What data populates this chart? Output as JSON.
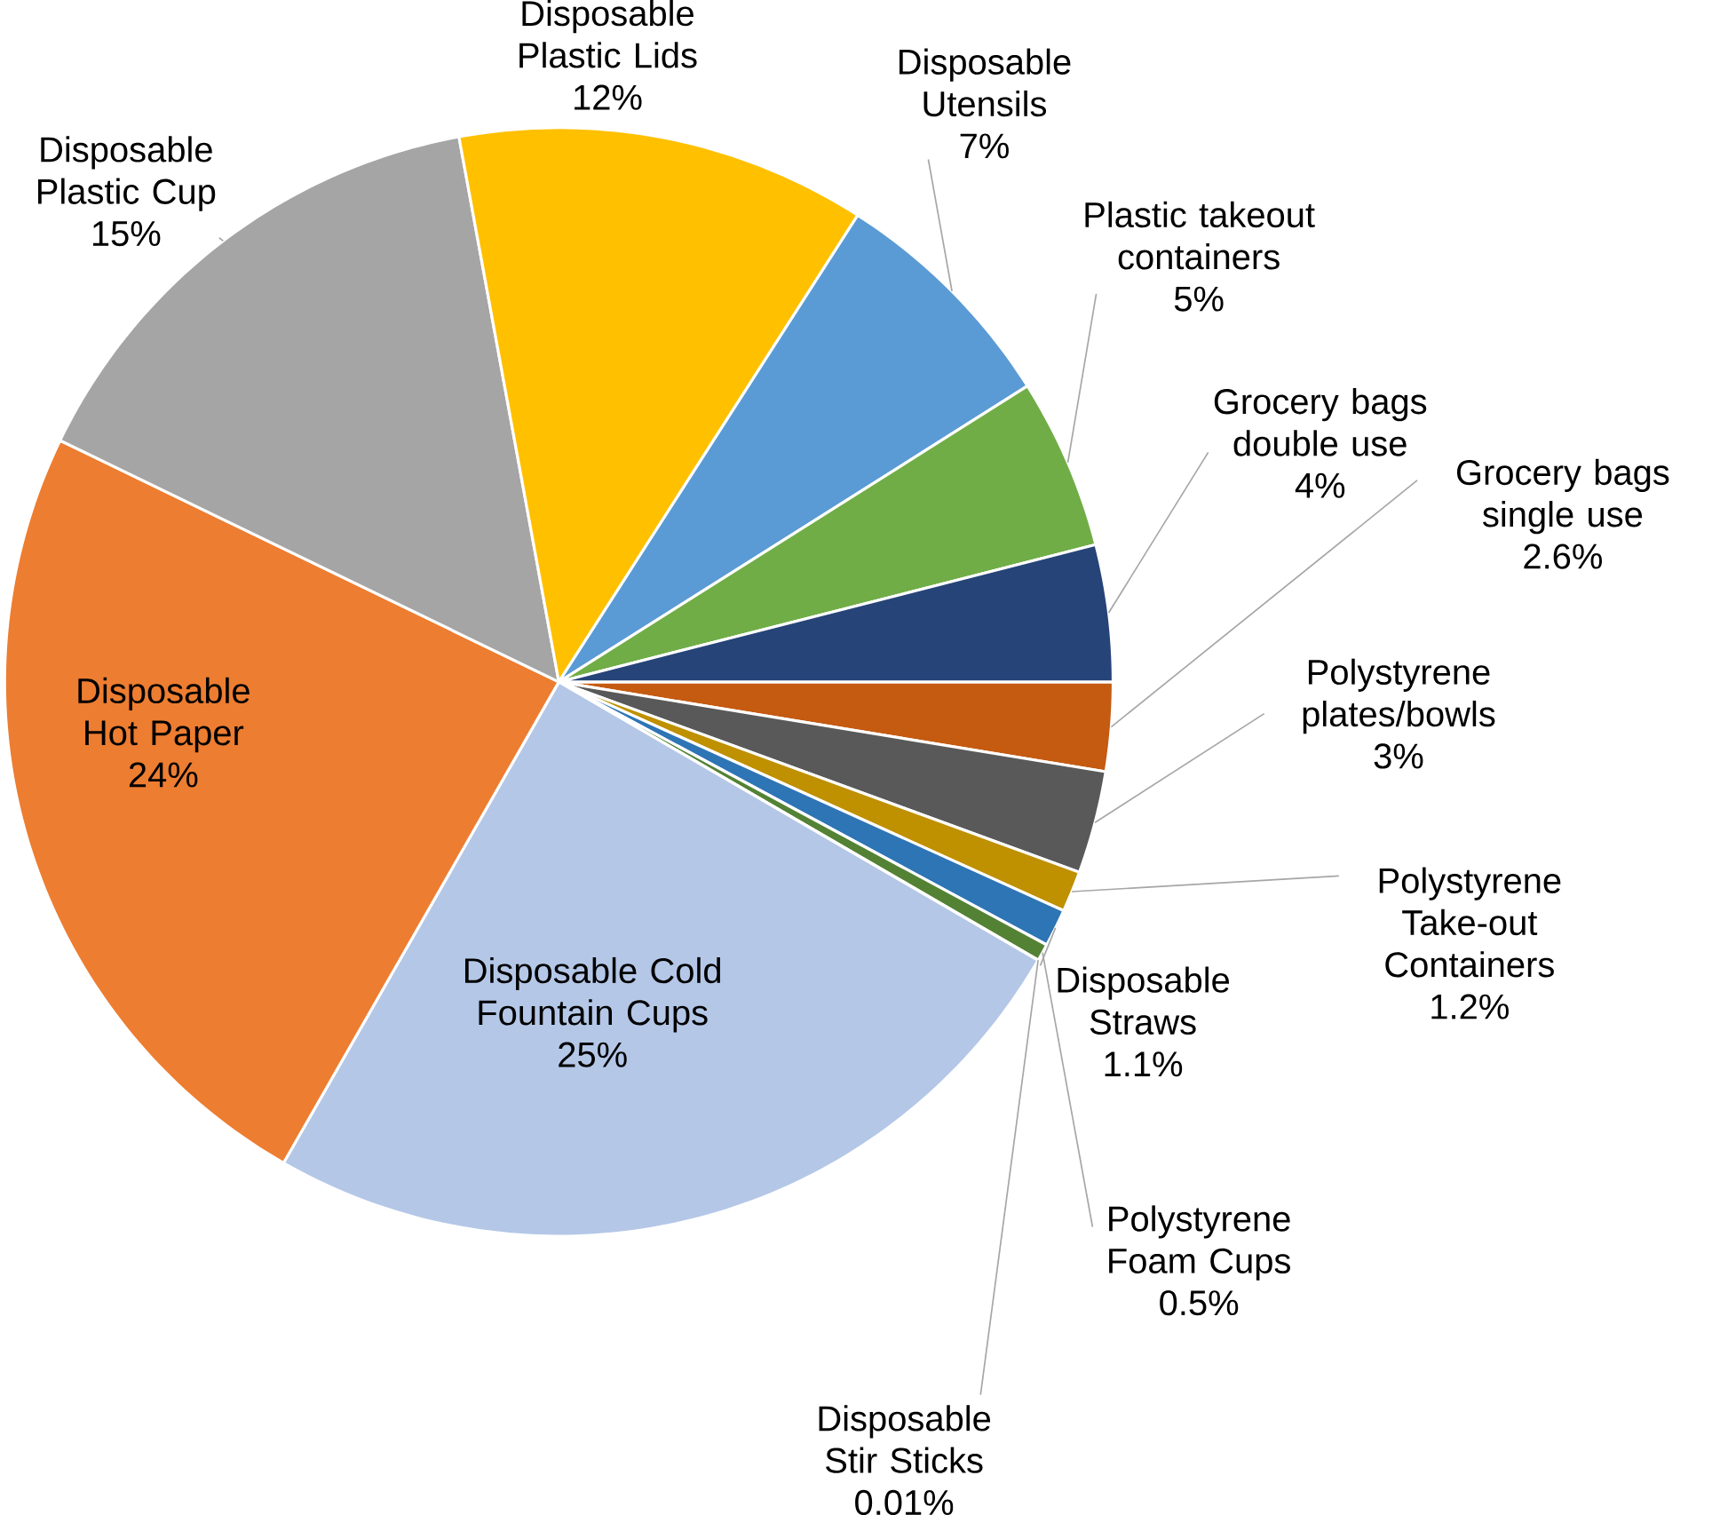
{
  "chart_data": {
    "type": "pie",
    "categories": [
      "Grocery bags single use",
      "Polystyrene plates/bowls",
      "Polystyrene Take-out Containers",
      "Disposable Straws",
      "Polystyrene Foam Cups",
      "Disposable Stir Sticks",
      "Disposable Cold Fountain Cups",
      "Disposable Hot Paper",
      "Disposable Plastic Cup",
      "Disposable Plastic Lids",
      "Disposable Utensils",
      "Plastic takeout containers",
      "Grocery bags double use"
    ],
    "values": [
      2.6,
      3,
      1.2,
      1.1,
      0.5,
      0.01,
      25,
      24,
      15,
      12,
      7,
      5,
      4
    ],
    "value_labels": [
      "2.6%",
      "3%",
      "1.2%",
      "1.1%",
      "0.5%",
      "0.01%",
      "25%",
      "24%",
      "15%",
      "12%",
      "7%",
      "5%",
      "4%"
    ],
    "colors": [
      "#c55a11",
      "#595959",
      "#bf9000",
      "#2e75b6",
      "#548235",
      "#375623",
      "#b4c7e7",
      "#ed7d31",
      "#a5a5a5",
      "#ffc000",
      "#5b9bd5",
      "#70ad47",
      "#264478"
    ]
  }
}
